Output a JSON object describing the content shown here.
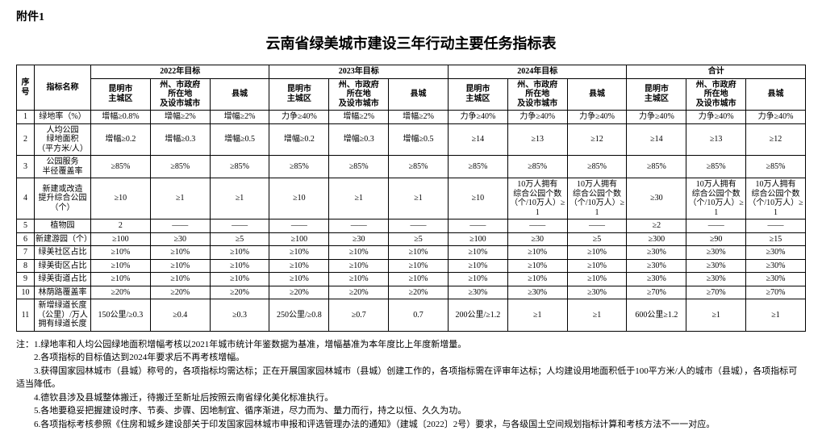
{
  "attachment": "附件1",
  "title": "云南省绿美城市建设三年行动主要任务指标表",
  "header": {
    "seq": "序号",
    "name": "指标名称",
    "groups": [
      "2022年目标",
      "2023年目标",
      "2024年目标",
      "合计"
    ],
    "subs": [
      "昆明市\n主城区",
      "州、市政府\n所在地\n及设市城市",
      "县城"
    ]
  },
  "rows": [
    {
      "seq": "1",
      "name": "绿地率（%）",
      "c": [
        "增幅≥0.8%",
        "增幅≥2%",
        "增幅≥2%",
        "力争≥40%",
        "增幅≥2%",
        "增幅≥2%",
        "力争≥40%",
        "力争≥40%",
        "力争≥40%",
        "力争≥40%",
        "力争≥40%",
        "力争≥40%"
      ]
    },
    {
      "seq": "2",
      "name": "人均公园\n绿地面积\n（平方米/人）",
      "c": [
        "增幅≥0.2",
        "增幅≥0.3",
        "增幅≥0.5",
        "增幅≥0.2",
        "增幅≥0.3",
        "增幅≥0.5",
        "≥14",
        "≥13",
        "≥12",
        "≥14",
        "≥13",
        "≥12"
      ]
    },
    {
      "seq": "3",
      "name": "公园服务\n半径覆盖率",
      "c": [
        "≥85%",
        "≥85%",
        "≥85%",
        "≥85%",
        "≥85%",
        "≥85%",
        "≥85%",
        "≥85%",
        "≥85%",
        "≥85%",
        "≥85%",
        "≥85%"
      ]
    },
    {
      "seq": "4",
      "name": "新建或改造\n提升综合公园\n（个）",
      "c": [
        "≥10",
        "≥1",
        "≥1",
        "≥10",
        "≥1",
        "≥1",
        "≥10",
        "10万人拥有\n综合公园个数\n（个/10万人）≥1",
        "10万人拥有\n综合公园个数\n（个/10万人）≥1",
        "≥30",
        "10万人拥有\n综合公园个数\n（个/10万人）≥1",
        "10万人拥有\n综合公园个数\n（个/10万人）≥1"
      ]
    },
    {
      "seq": "5",
      "name": "植物园",
      "c": [
        "2",
        "——",
        "——",
        "——",
        "——",
        "——",
        "——",
        "——",
        "——",
        "≥2",
        "——",
        "——"
      ]
    },
    {
      "seq": "6",
      "name": "新建游园（个）",
      "c": [
        "≥100",
        "≥30",
        "≥5",
        "≥100",
        "≥30",
        "≥5",
        "≥100",
        "≥30",
        "≥5",
        "≥300",
        "≥90",
        "≥15"
      ]
    },
    {
      "seq": "7",
      "name": "绿美社区占比",
      "c": [
        "≥10%",
        "≥10%",
        "≥10%",
        "≥10%",
        "≥10%",
        "≥10%",
        "≥10%",
        "≥10%",
        "≥10%",
        "≥30%",
        "≥30%",
        "≥30%"
      ]
    },
    {
      "seq": "8",
      "name": "绿美街区占比",
      "c": [
        "≥10%",
        "≥10%",
        "≥10%",
        "≥10%",
        "≥10%",
        "≥10%",
        "≥10%",
        "≥10%",
        "≥10%",
        "≥30%",
        "≥30%",
        "≥30%"
      ]
    },
    {
      "seq": "9",
      "name": "绿美街道占比",
      "c": [
        "≥10%",
        "≥10%",
        "≥10%",
        "≥10%",
        "≥10%",
        "≥10%",
        "≥10%",
        "≥10%",
        "≥10%",
        "≥30%",
        "≥30%",
        "≥30%"
      ]
    },
    {
      "seq": "10",
      "name": "林荫路覆盖率",
      "c": [
        "≥20%",
        "≥20%",
        "≥20%",
        "≥20%",
        "≥20%",
        "≥20%",
        "≥30%",
        "≥30%",
        "≥30%",
        "≥70%",
        "≥70%",
        "≥70%"
      ]
    },
    {
      "seq": "11",
      "name": "新增绿道长度\n（公里）/万人\n拥有绿道长度",
      "c": [
        "150公里/≥0.3",
        "≥0.4",
        "≥0.3",
        "250公里/≥0.8",
        "≥0.7",
        "0.7",
        "200公里/≥1.2",
        "≥1",
        "≥1",
        "600公里≥1.2",
        "≥1",
        "≥1"
      ]
    }
  ],
  "notes_label": "注：",
  "notes": [
    "1.绿地率和人均公园绿地面积增幅考核以2021年城市统计年鉴数据为基准，增幅基准为本年度比上年度新增量。",
    "2.各项指标的目标值达到2024年要求后不再考核增幅。",
    "3.获得国家园林城市（县城）称号的，各项指标均需达标；正在开展国家园林城市（县城）创建工作的，各项指标需在评审年达标；人均建设用地面积低于100平方米/人的城市（县城），各项指标可适当降低。",
    "4.德钦县涉及县城整体搬迁，待搬迁至新址后按照云南省绿化美化标准执行。",
    "5.各地要稳妥把握建设时序、节奏、步骤、因地制宜、循序渐进，尽力而为、量力而行，持之以恒、久久为功。",
    "6.各项指标考核参照《住房和城乡建设部关于印发国家园林城市申报和评选管理办法的通知》（建城〔2022〕2号）要求，与各级国土空间规划指标计算和考核方法不一一对应。"
  ]
}
